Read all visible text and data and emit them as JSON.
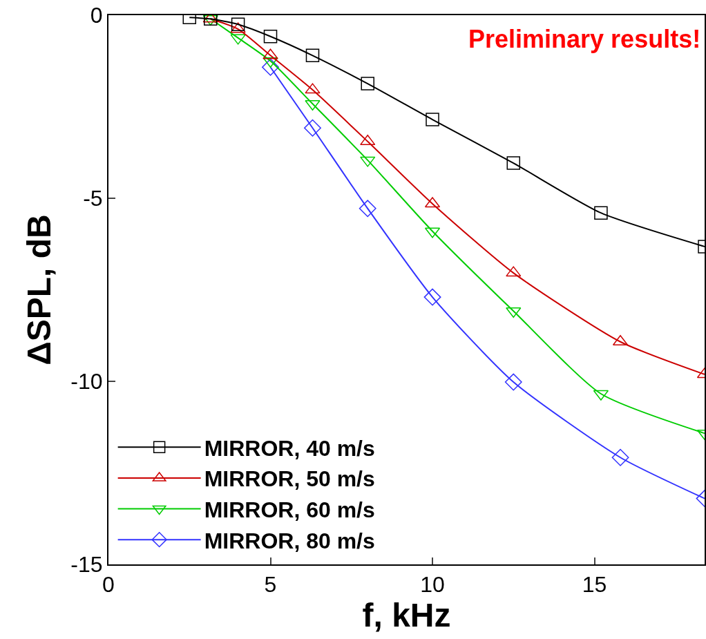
{
  "chart_data": {
    "type": "line",
    "xlabel": "f, kHz",
    "ylabel": "ΔSPL, dB",
    "annotations": [
      "Preliminary results!"
    ],
    "xlim": [
      0,
      18.4
    ],
    "xticks": [
      0,
      5,
      10,
      15
    ],
    "ylim": [
      -15,
      0
    ],
    "yticks": [
      0,
      -5,
      -10,
      -15
    ],
    "grid": false,
    "legend": "bottom left",
    "series": [
      {
        "name": "MIRROR, 40 m/s",
        "color": "#000000",
        "marker": "square",
        "x": [
          2.5,
          3.15,
          4,
          5,
          6.3,
          8,
          10,
          12.5,
          15.2,
          18.4
        ],
        "values": [
          -0.06,
          -0.1,
          -0.25,
          -0.58,
          -1.1,
          -1.87,
          -2.85,
          -4.04,
          -5.4,
          -6.32
        ]
      },
      {
        "name": "MIRROR, 50 m/s",
        "color": "#cc0000",
        "marker": "triangle",
        "x": [
          3.15,
          4,
          5,
          6.3,
          8,
          10,
          12.5,
          15.8,
          18.4
        ],
        "values": [
          -0.1,
          -0.38,
          -1.1,
          -2.04,
          -3.45,
          -5.15,
          -7.04,
          -8.92,
          -9.81
        ]
      },
      {
        "name": "MIRROR, 60 m/s",
        "color": "#00cc00",
        "marker": "triangle-down",
        "x": [
          3.15,
          4,
          5,
          6.3,
          8,
          10,
          12.5,
          15.2,
          18.4
        ],
        "values": [
          -0.1,
          -0.62,
          -1.25,
          -2.42,
          -3.96,
          -5.9,
          -8.08,
          -10.34,
          -11.42
        ]
      },
      {
        "name": "MIRROR, 80 m/s",
        "color": "#3333ff",
        "marker": "diamond",
        "x": [
          5,
          6.3,
          8,
          10,
          12.5,
          15.8,
          18.4
        ],
        "values": [
          -1.42,
          -3.08,
          -5.28,
          -7.7,
          -10.02,
          -12.08,
          -13.2
        ]
      }
    ]
  }
}
